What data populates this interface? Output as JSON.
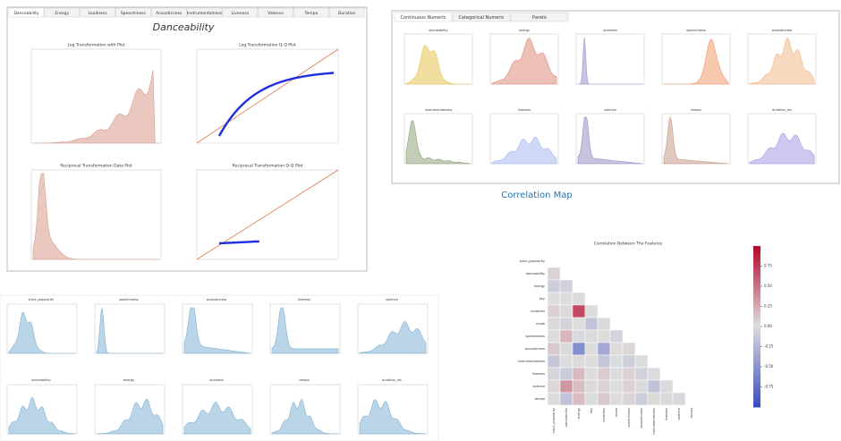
{
  "left_panel": {
    "tabs": [
      "Danceability",
      "Energy",
      "Loudness",
      "Speechiness",
      "Acousticness",
      "Instrumentalness",
      "Liveness",
      "Valence",
      "Tempo",
      "Duration"
    ],
    "title": "Danceability",
    "plots": [
      "Log Transformation with Plot",
      "Log Transformation Q-Q Plot",
      "Reciprocal Transformation Data Plot",
      "Reciprocal Transformation Q-Q Plot"
    ]
  },
  "right_panel": {
    "tabs": [
      "Continuous Numeric",
      "Categorical Numeric",
      "Pareto"
    ],
    "plots": [
      "danceability",
      "energy",
      "loudness",
      "speechiness",
      "acousticness",
      "instrumentalness",
      "liveness",
      "valence",
      "tempo",
      "duration_ms"
    ]
  },
  "bottom_grid": {
    "plots": [
      "track_popularity",
      "speechiness",
      "acousticness",
      "liveness",
      "valence",
      "danceability",
      "energy",
      "loudness",
      "tempo",
      "duration_ms"
    ]
  },
  "correlation_map": {
    "heading": "Correlation Map",
    "title": "Correlation Between The Features",
    "features": [
      "track_popularity",
      "danceability",
      "energy",
      "key",
      "loudness",
      "mode",
      "speechiness",
      "acousticness",
      "instrumentalness",
      "liveness",
      "valence",
      "tempo"
    ],
    "values": [
      [
        0.05
      ],
      [
        -0.11,
        -0.08
      ],
      [
        0.0,
        0.01,
        0.01
      ],
      [
        0.06,
        0.02,
        0.68,
        0.0
      ],
      [
        0.02,
        -0.06,
        0.0,
        -0.17,
        -0.02
      ],
      [
        0.01,
        0.18,
        -0.03,
        0.02,
        0.01,
        -0.06
      ],
      [
        0.09,
        -0.02,
        -0.54,
        0.0,
        -0.36,
        0.01,
        0.03
      ],
      [
        -0.15,
        -0.01,
        0.02,
        0.01,
        -0.15,
        -0.01,
        -0.1,
        -0.01
      ],
      [
        -0.05,
        -0.12,
        0.16,
        0.0,
        0.08,
        -0.01,
        0.06,
        -0.08,
        -0.01
      ],
      [
        0.03,
        0.33,
        0.15,
        0.02,
        0.05,
        0.0,
        0.06,
        -0.02,
        -0.18,
        -0.02
      ],
      [
        0.01,
        -0.18,
        0.15,
        -0.01,
        0.09,
        0.01,
        0.04,
        -0.11,
        0.02,
        0.02,
        -0.03
      ]
    ],
    "clim": [
      -1,
      1
    ],
    "colorbar_ticks": [
      {
        "value": 0.75,
        "label": "0.75"
      },
      {
        "value": 0.5,
        "label": "0.50"
      },
      {
        "value": 0.25,
        "label": "0.25"
      },
      {
        "value": 0,
        "label": "0.00"
      },
      {
        "value": -0.25,
        "label": "-0.25"
      },
      {
        "value": -0.5,
        "label": "-0.50"
      },
      {
        "value": -0.75,
        "label": "-0.75"
      }
    ]
  }
}
